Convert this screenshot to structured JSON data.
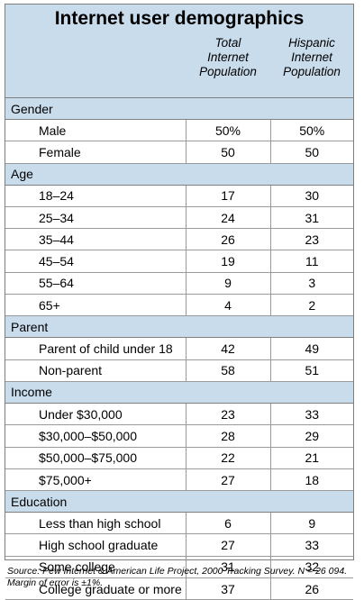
{
  "title": "Internet user demographics",
  "columns": [
    {
      "line1": "Total",
      "line2": "Internet",
      "line3": "Population"
    },
    {
      "line1": "Hispanic",
      "line2": "Internet",
      "line3": "Population"
    }
  ],
  "sections": [
    {
      "name": "Gender",
      "rows": [
        {
          "label": "Male",
          "total": "50%",
          "hispanic": "50%"
        },
        {
          "label": "Female",
          "total": "50",
          "hispanic": "50"
        }
      ]
    },
    {
      "name": "Age",
      "rows": [
        {
          "label": "18–24",
          "total": "17",
          "hispanic": "30"
        },
        {
          "label": "25–34",
          "total": "24",
          "hispanic": "31"
        },
        {
          "label": "35–44",
          "total": "26",
          "hispanic": "23"
        },
        {
          "label": "45–54",
          "total": "19",
          "hispanic": "11"
        },
        {
          "label": "55–64",
          "total": "9",
          "hispanic": "3"
        },
        {
          "label": "65+",
          "total": "4",
          "hispanic": "2"
        }
      ]
    },
    {
      "name": "Parent",
      "rows": [
        {
          "label": "Parent of child under 18",
          "total": "42",
          "hispanic": "49"
        },
        {
          "label": "Non-parent",
          "total": "58",
          "hispanic": "51"
        }
      ]
    },
    {
      "name": "Income",
      "rows": [
        {
          "label": "Under $30,000",
          "total": "23",
          "hispanic": "33"
        },
        {
          "label": "$30,000–$50,000",
          "total": "28",
          "hispanic": "29"
        },
        {
          "label": "$50,000–$75,000",
          "total": "22",
          "hispanic": "21"
        },
        {
          "label": "$75,000+",
          "total": "27",
          "hispanic": "18"
        }
      ]
    },
    {
      "name": "Education",
      "rows": [
        {
          "label": "Less than high school",
          "total": "6",
          "hispanic": "9"
        },
        {
          "label": "High school graduate",
          "total": "27",
          "hispanic": "33"
        },
        {
          "label": "Some college",
          "total": "31",
          "hispanic": "32"
        },
        {
          "label": "College graduate or more",
          "total": "37",
          "hispanic": "26"
        }
      ]
    }
  ],
  "source": "Source: Pew Internet & American Life Project, 2000 Tracking Survey. N = 26 094. Margin of error is ±1%.",
  "colors": {
    "header_bg": "#c9dcec",
    "border": "#7f7f7f"
  },
  "chart_data": {
    "type": "table",
    "title": "Internet user demographics",
    "columns": [
      "Total Internet Population",
      "Hispanic Internet Population"
    ],
    "rows": [
      {
        "group": "Gender",
        "label": "Male",
        "values": [
          "50%",
          "50%"
        ]
      },
      {
        "group": "Gender",
        "label": "Female",
        "values": [
          "50",
          "50"
        ]
      },
      {
        "group": "Age",
        "label": "18–24",
        "values": [
          "17",
          "30"
        ]
      },
      {
        "group": "Age",
        "label": "25–34",
        "values": [
          "24",
          "31"
        ]
      },
      {
        "group": "Age",
        "label": "35–44",
        "values": [
          "26",
          "23"
        ]
      },
      {
        "group": "Age",
        "label": "45–54",
        "values": [
          "19",
          "11"
        ]
      },
      {
        "group": "Age",
        "label": "55–64",
        "values": [
          "9",
          "3"
        ]
      },
      {
        "group": "Age",
        "label": "65+",
        "values": [
          "4",
          "2"
        ]
      },
      {
        "group": "Parent",
        "label": "Parent of child under 18",
        "values": [
          "42",
          "49"
        ]
      },
      {
        "group": "Parent",
        "label": "Non-parent",
        "values": [
          "58",
          "51"
        ]
      },
      {
        "group": "Income",
        "label": "Under $30,000",
        "values": [
          "23",
          "33"
        ]
      },
      {
        "group": "Income",
        "label": "$30,000–$50,000",
        "values": [
          "28",
          "29"
        ]
      },
      {
        "group": "Income",
        "label": "$50,000–$75,000",
        "values": [
          "22",
          "21"
        ]
      },
      {
        "group": "Income",
        "label": "$75,000+",
        "values": [
          "27",
          "18"
        ]
      },
      {
        "group": "Education",
        "label": "Less than high school",
        "values": [
          "6",
          "9"
        ]
      },
      {
        "group": "Education",
        "label": "High school graduate",
        "values": [
          "27",
          "33"
        ]
      },
      {
        "group": "Education",
        "label": "Some college",
        "values": [
          "31",
          "32"
        ]
      },
      {
        "group": "Education",
        "label": "College graduate or more",
        "values": [
          "37",
          "26"
        ]
      }
    ]
  }
}
